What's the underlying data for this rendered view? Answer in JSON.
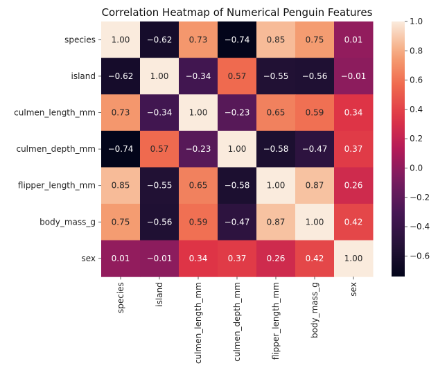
{
  "chart_data": {
    "type": "heatmap",
    "title": "Correlation Heatmap of Numerical Penguin Features",
    "rows": [
      "species",
      "island",
      "culmen_length_mm",
      "culmen_depth_mm",
      "flipper_length_mm",
      "body_mass_g",
      "sex"
    ],
    "columns": [
      "species",
      "island",
      "culmen_length_mm",
      "culmen_depth_mm",
      "flipper_length_mm",
      "body_mass_g",
      "sex"
    ],
    "values": [
      [
        1.0,
        -0.62,
        0.73,
        -0.74,
        0.85,
        0.75,
        0.01
      ],
      [
        -0.62,
        1.0,
        -0.34,
        0.57,
        -0.55,
        -0.56,
        -0.01
      ],
      [
        0.73,
        -0.34,
        1.0,
        -0.23,
        0.65,
        0.59,
        0.34
      ],
      [
        -0.74,
        0.57,
        -0.23,
        1.0,
        -0.58,
        -0.47,
        0.37
      ],
      [
        0.85,
        -0.55,
        0.65,
        -0.58,
        1.0,
        0.87,
        0.26
      ],
      [
        0.75,
        -0.56,
        0.59,
        -0.47,
        0.87,
        1.0,
        0.42
      ],
      [
        0.01,
        -0.01,
        0.34,
        0.37,
        0.26,
        0.42,
        1.0
      ]
    ],
    "value_format": "2f",
    "colormap": "rocket",
    "colorbar": {
      "range": [
        -0.74,
        1.0
      ],
      "ticks": [
        1.0,
        0.8,
        0.6,
        0.4,
        0.2,
        0.0,
        -0.2,
        -0.4,
        -0.6
      ],
      "tick_labels": [
        "1.0",
        "0.8",
        "0.6",
        "0.4",
        "0.2",
        "0.0",
        "−0.2",
        "−0.4",
        "−0.6"
      ]
    }
  }
}
